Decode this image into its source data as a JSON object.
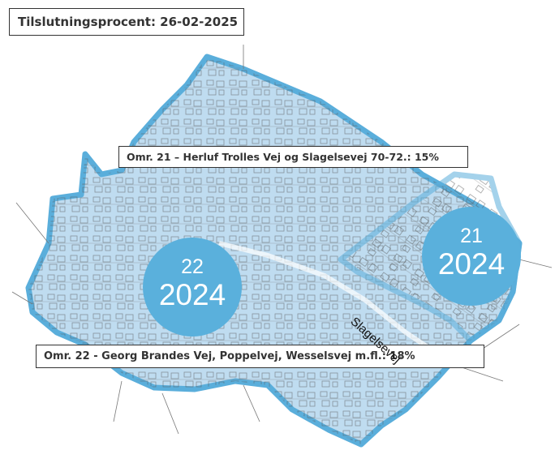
{
  "title": "Tilslutningsprocent: 26-02-2025",
  "areas": [
    {
      "id": "21",
      "year": "2024",
      "label": "Omr. 21 – Herluf Trolles Vej og Slagelsevej 70-72.: 15%"
    },
    {
      "id": "22",
      "year": "2024",
      "label": "Omr. 22 - Georg Brandes Vej, Poppelvej, Wesselsvej m.fl.: 18%"
    }
  ],
  "road_label": "Slagelsevej",
  "colors": {
    "area_fill": "#bfdcf0",
    "area_border": "#5aaedb",
    "circle": "#5ab0dc",
    "buildings": "#555555"
  }
}
